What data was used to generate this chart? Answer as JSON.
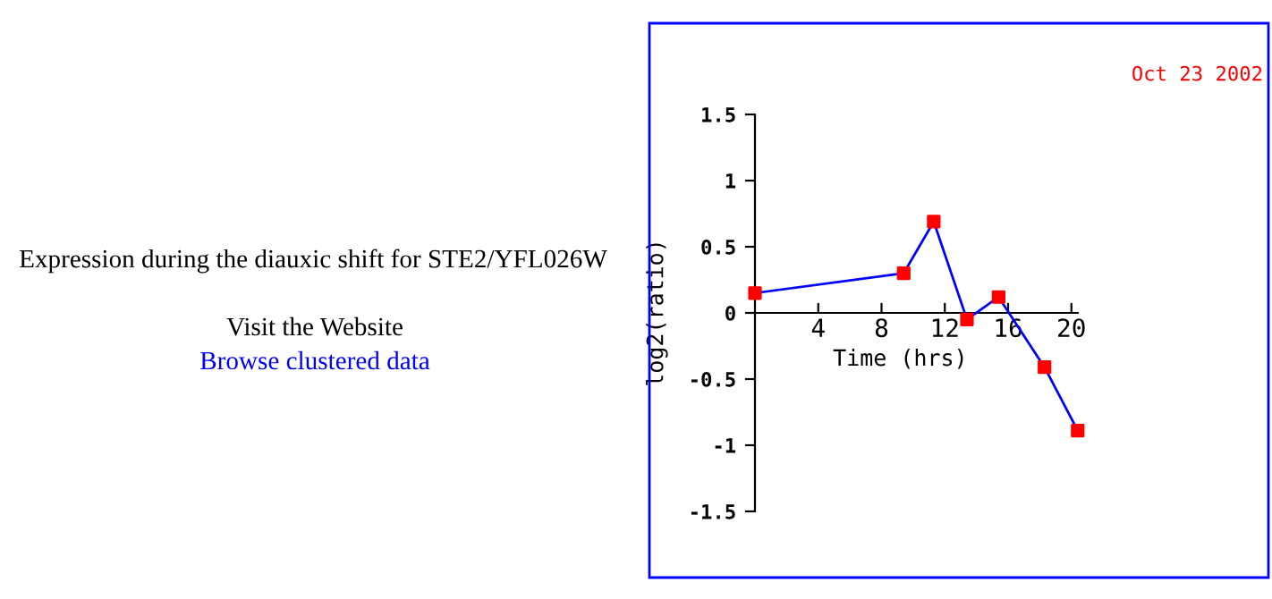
{
  "chart_data": {
    "type": "line",
    "title": "Expression during the diauxic shift for STE2/YFL026W",
    "xlabel": "Time (hrs)",
    "ylabel": "log2(ratio)",
    "annotations": [
      "Oct 23 2002",
      "Visit the Website",
      "Browse clustered data"
    ],
    "x": [
      0,
      9.4,
      11.3,
      13.4,
      15.4,
      18.3,
      20.4
    ],
    "series": [
      {
        "color": "#0000ff",
        "colors": [
          "#ff0000",
          "#ff0000",
          "#ff0000",
          "#ff0000",
          "#ff0000",
          "#ff0000",
          "#ff0000"
        ],
        "values": [
          0.15,
          0.3,
          0.69,
          -0.05,
          0.12,
          -0.41,
          -0.89
        ]
      }
    ],
    "marker": "square",
    "line_style": "solid",
    "xlim": [
      0,
      20.4
    ],
    "ylim": [
      -1.5,
      1.5
    ],
    "xticks": [
      4,
      8,
      12,
      16,
      20
    ],
    "yticks": [
      1.5,
      1,
      0.5,
      0,
      -0.5,
      -1,
      -1.5
    ],
    "grid": false,
    "legend": false
  }
}
